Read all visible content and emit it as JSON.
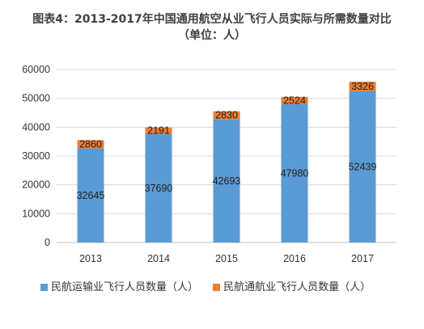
{
  "title": "图表4：2013-2017年中国通用航空从业飞行人员实际与所需数量对比",
  "subtitle": "（单位：人）",
  "colors": {
    "series1": "#5b9bd5",
    "series2": "#ed7d31"
  },
  "chart_data": {
    "type": "bar",
    "stacked": true,
    "title": "图表4：2013-2017年中国通用航空从业飞行人员实际与所需数量对比",
    "subtitle": "（单位：人）",
    "categories": [
      "2013",
      "2014",
      "2015",
      "2016",
      "2017"
    ],
    "series": [
      {
        "name": "民航运输业飞行人员数量（人）",
        "values": [
          32645,
          37690,
          42693,
          47980,
          52439
        ]
      },
      {
        "name": "民航通航业飞行人员数量（人）",
        "values": [
          2860,
          2191,
          2830,
          2524,
          3326
        ]
      }
    ],
    "ylim": [
      0,
      60000
    ],
    "yticks": [
      0,
      10000,
      20000,
      30000,
      40000,
      50000,
      60000
    ],
    "grid": true,
    "legend": "bottom"
  }
}
